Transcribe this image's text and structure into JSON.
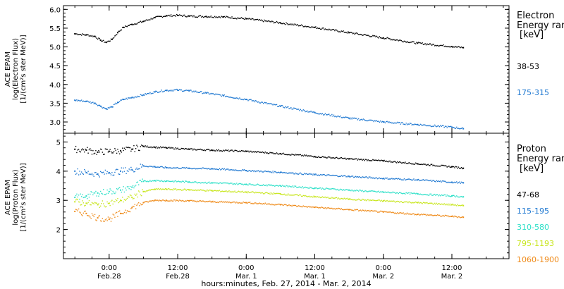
{
  "chart_data": [
    {
      "type": "scatter",
      "panel": "electron",
      "ylabel": [
        "ACE EPAM",
        "log(Electron Flux)",
        "[1/(cm²s ster MeV)]"
      ],
      "ylim": [
        2.7,
        6.1
      ],
      "yticks": [
        3.0,
        3.5,
        4.0,
        4.5,
        5.0,
        5.5,
        6.0
      ],
      "ytick_labels": [
        "3.0",
        "3.5",
        "4.0",
        "4.5",
        "5.0",
        "5.5",
        "6.0"
      ],
      "legend_title": [
        "Electron",
        "Energy ran",
        "[keV]"
      ],
      "legend_position": "right",
      "series": [
        {
          "name": "38-53",
          "color": "#000000",
          "x": [
            -6,
            -4,
            -2.5,
            -1.5,
            -0.5,
            0.5,
            1.5,
            2.5,
            4,
            6,
            8,
            10,
            12,
            14,
            17,
            20,
            24,
            30,
            36,
            42,
            48,
            54,
            60,
            62
          ],
          "y": [
            5.35,
            5.32,
            5.28,
            5.18,
            5.12,
            5.2,
            5.38,
            5.52,
            5.6,
            5.68,
            5.78,
            5.83,
            5.84,
            5.82,
            5.81,
            5.8,
            5.75,
            5.64,
            5.52,
            5.38,
            5.24,
            5.1,
            5.01,
            4.98
          ]
        },
        {
          "name": "175-315",
          "color": "#1f78d1",
          "x": [
            -6,
            -4,
            -2.5,
            -1.5,
            -0.5,
            0.5,
            1.5,
            2.5,
            4,
            6,
            8,
            10,
            12,
            14,
            17,
            20,
            24,
            30,
            36,
            42,
            48,
            54,
            60,
            62
          ],
          "y": [
            3.58,
            3.55,
            3.5,
            3.42,
            3.35,
            3.4,
            3.52,
            3.6,
            3.65,
            3.72,
            3.8,
            3.84,
            3.85,
            3.83,
            3.77,
            3.7,
            3.6,
            3.42,
            3.25,
            3.1,
            3.0,
            2.93,
            2.86,
            2.82
          ]
        }
      ]
    },
    {
      "type": "scatter",
      "panel": "proton",
      "ylabel": [
        "ACE EPAM",
        "log(Proton Flux)",
        "[1/(cm²s ster MeV)]"
      ],
      "ylim": [
        1.0,
        5.3
      ],
      "yticks": [
        2,
        3,
        4,
        5
      ],
      "ytick_labels": [
        "2",
        "3",
        "4",
        "5"
      ],
      "legend_title": [
        "Proton",
        "Energy ran",
        "[keV]"
      ],
      "legend_position": "right",
      "series": [
        {
          "name": "47-68",
          "color": "#000000",
          "x": [
            -6,
            -4,
            -2,
            0,
            2,
            4,
            6,
            8,
            10,
            14,
            18,
            24,
            30,
            36,
            42,
            48,
            54,
            60,
            62
          ],
          "y": [
            4.75,
            4.72,
            4.65,
            4.68,
            4.7,
            4.75,
            4.85,
            4.82,
            4.8,
            4.75,
            4.72,
            4.68,
            4.6,
            4.5,
            4.42,
            4.35,
            4.25,
            4.15,
            4.1
          ]
        },
        {
          "name": "115-195",
          "color": "#1f78d1",
          "x": [
            -6,
            -4,
            -2,
            0,
            2,
            4,
            6,
            8,
            10,
            14,
            18,
            24,
            30,
            36,
            42,
            48,
            54,
            60,
            62
          ],
          "y": [
            4.0,
            3.95,
            3.9,
            3.95,
            4.0,
            4.05,
            4.18,
            4.15,
            4.12,
            4.1,
            4.08,
            4.02,
            3.96,
            3.88,
            3.82,
            3.75,
            3.7,
            3.62,
            3.6
          ]
        },
        {
          "name": "310-580",
          "color": "#2ee0c8",
          "x": [
            -6,
            -4,
            -2,
            0,
            2,
            4,
            6,
            8,
            10,
            14,
            18,
            24,
            30,
            36,
            42,
            48,
            54,
            60,
            62
          ],
          "y": [
            3.1,
            3.15,
            3.25,
            3.3,
            3.35,
            3.45,
            3.65,
            3.68,
            3.66,
            3.63,
            3.6,
            3.55,
            3.5,
            3.42,
            3.35,
            3.28,
            3.22,
            3.15,
            3.12
          ]
        },
        {
          "name": "795-1193",
          "color": "#c8e61e",
          "x": [
            -6,
            -4,
            -2,
            0,
            2,
            4,
            6,
            8,
            10,
            14,
            18,
            24,
            30,
            36,
            42,
            48,
            54,
            60,
            62
          ],
          "y": [
            2.95,
            2.9,
            2.85,
            2.9,
            3.0,
            3.1,
            3.3,
            3.38,
            3.38,
            3.36,
            3.33,
            3.28,
            3.22,
            3.12,
            3.04,
            2.98,
            2.92,
            2.85,
            2.82
          ]
        },
        {
          "name": "1060-1900",
          "color": "#ef8b1a",
          "x": [
            -6,
            -4,
            -2,
            0,
            2,
            4,
            6,
            8,
            10,
            14,
            18,
            24,
            30,
            36,
            42,
            48,
            54,
            60,
            62
          ],
          "y": [
            2.62,
            2.55,
            2.4,
            2.35,
            2.55,
            2.75,
            2.92,
            3.0,
            3.0,
            2.98,
            2.95,
            2.92,
            2.85,
            2.76,
            2.68,
            2.6,
            2.52,
            2.45,
            2.42
          ]
        }
      ]
    }
  ],
  "xaxis": {
    "xlim": [
      -8,
      70
    ],
    "label": "hours:minutes, Feb. 27, 2014 - Mar.  2, 2014",
    "ticks": [
      {
        "x": 0,
        "top": "0:00",
        "bottom": "Feb.28"
      },
      {
        "x": 12,
        "top": "12:00",
        "bottom": "Feb.28"
      },
      {
        "x": 24,
        "top": "0:00",
        "bottom": "Mar. 1"
      },
      {
        "x": 36,
        "top": "12:00",
        "bottom": "Mar. 1"
      },
      {
        "x": 48,
        "top": "0:00",
        "bottom": "Mar. 2"
      },
      {
        "x": 60,
        "top": "12:00",
        "bottom": "Mar. 2"
      }
    ]
  }
}
